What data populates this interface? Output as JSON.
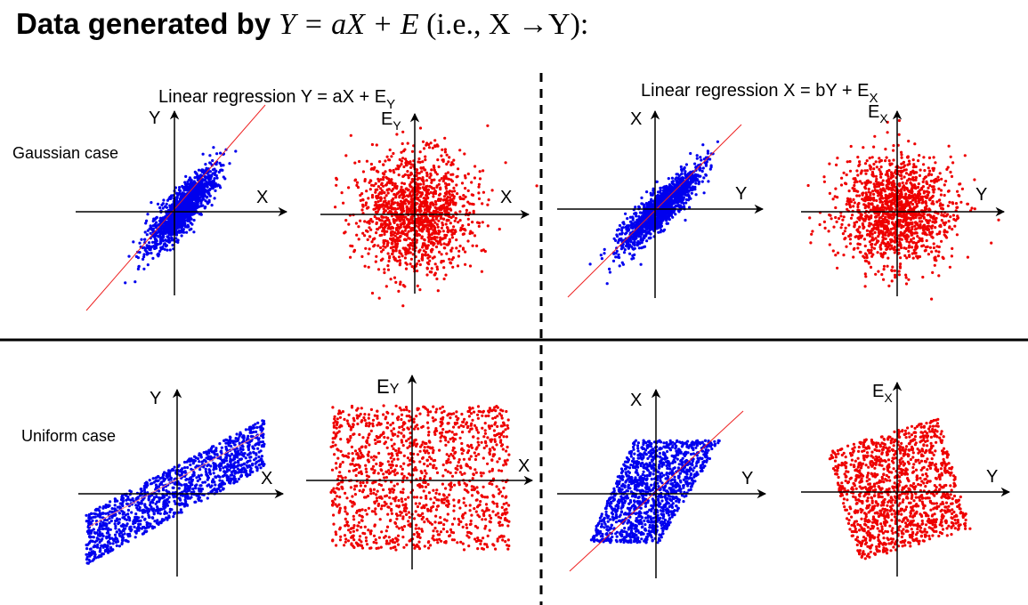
{
  "title": {
    "prefix": "Data generated by ",
    "equation": "Y = aX + E",
    "suffix": " (i.e., X →Y):"
  },
  "headers": {
    "left": {
      "text": "Linear regression Y = aX + E",
      "sub": "Y"
    },
    "right": {
      "text": "Linear regression X = bY + E",
      "sub": "X"
    }
  },
  "rows": {
    "gaussian": "Gaussian case",
    "uniform": "Uniform case"
  },
  "axis_labels": {
    "g_fit_left": {
      "y": "Y",
      "x": "X"
    },
    "g_res_left": {
      "y": "E",
      "y_sub": "Y",
      "x": "X"
    },
    "g_fit_right": {
      "y": "X",
      "x": "Y"
    },
    "g_res_right": {
      "y": "E",
      "y_sub": "X",
      "x": "Y"
    },
    "u_fit_left": {
      "y": "Y",
      "x": "X"
    },
    "u_res_left": {
      "y": "E",
      "y_sub": "Y",
      "x": "X"
    },
    "u_fit_right": {
      "y": "X",
      "x": "Y"
    },
    "u_res_right": {
      "y": "E",
      "y_sub": "X",
      "x": "Y"
    }
  },
  "colors": {
    "data_points": "#0000ee",
    "residual_points": "#ee0000",
    "regression_line": "#ee2222"
  }
}
